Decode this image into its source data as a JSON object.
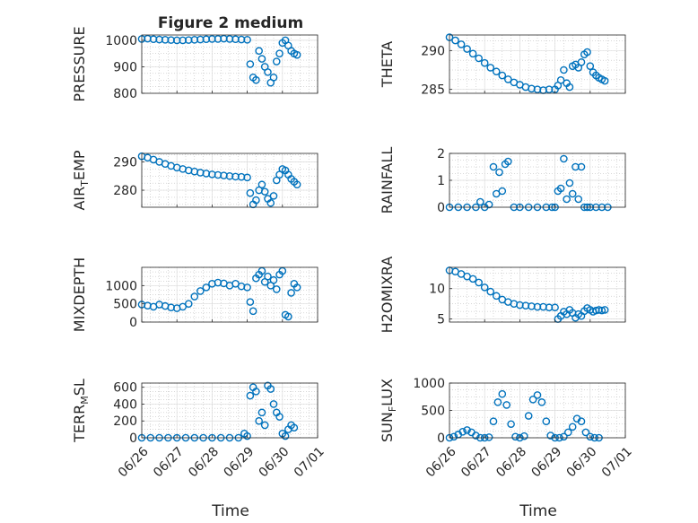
{
  "figure": {
    "title": "Figure 2 medium",
    "xlabel": "Time"
  },
  "style": {
    "marker_color": "#0072bd",
    "axis_color": "#262626",
    "grid_color": "#b3b3b3",
    "background": "#ffffff"
  },
  "x_tick_labels": [
    "06/26",
    "06/27",
    "06/28",
    "06/29",
    "06/30",
    "07/01"
  ],
  "chart_data": [
    {
      "type": "scatter",
      "ylabel": "PRESSURE",
      "ylim": [
        800,
        1020
      ],
      "yticks": [
        800,
        900,
        1000
      ],
      "xlim": [
        "06/26",
        "07/01"
      ],
      "grid": true,
      "series": [
        {
          "x": [
            "06/26 00:00",
            "06/26 04:00",
            "06/26 08:00",
            "06/26 12:00",
            "06/26 16:00",
            "06/26 20:00",
            "06/27 00:00",
            "06/27 04:00",
            "06/27 08:00",
            "06/27 12:00",
            "06/27 16:00",
            "06/27 20:00",
            "06/28 00:00",
            "06/28 04:00",
            "06/28 08:00",
            "06/28 12:00",
            "06/28 16:00",
            "06/28 20:00",
            "06/29 00:00",
            "06/29 02:00",
            "06/29 04:00",
            "06/29 06:00",
            "06/29 08:00",
            "06/29 10:00",
            "06/29 12:00",
            "06/29 14:00",
            "06/29 16:00",
            "06/29 18:00",
            "06/29 20:00",
            "06/29 22:00",
            "06/30 00:00",
            "06/30 02:00",
            "06/30 04:00",
            "06/30 06:00",
            "06/30 08:00",
            "06/30 10:00"
          ],
          "y": [
            1005,
            1006,
            1004,
            1003,
            1002,
            1001,
            1000,
            1000,
            1001,
            1002,
            1003,
            1004,
            1005,
            1005,
            1006,
            1005,
            1004,
            1003,
            1002,
            910,
            860,
            850,
            960,
            930,
            900,
            880,
            840,
            860,
            920,
            950,
            990,
            1000,
            980,
            960,
            950,
            945
          ]
        }
      ]
    },
    {
      "type": "scatter",
      "ylabel": "THETA",
      "ylim": [
        284.5,
        292
      ],
      "yticks": [
        285,
        290
      ],
      "xlim": [
        "06/26",
        "07/01"
      ],
      "grid": true,
      "series": [
        {
          "x": [
            "06/26 00:00",
            "06/26 04:00",
            "06/26 08:00",
            "06/26 12:00",
            "06/26 16:00",
            "06/26 20:00",
            "06/27 00:00",
            "06/27 04:00",
            "06/27 08:00",
            "06/27 12:00",
            "06/27 16:00",
            "06/27 20:00",
            "06/28 00:00",
            "06/28 04:00",
            "06/28 08:00",
            "06/28 12:00",
            "06/28 16:00",
            "06/28 20:00",
            "06/29 00:00",
            "06/29 02:00",
            "06/29 04:00",
            "06/29 06:00",
            "06/29 08:00",
            "06/29 10:00",
            "06/29 12:00",
            "06/29 14:00",
            "06/29 16:00",
            "06/29 18:00",
            "06/29 20:00",
            "06/29 22:00",
            "06/30 00:00",
            "06/30 02:00",
            "06/30 04:00",
            "06/30 06:00",
            "06/30 08:00",
            "06/30 10:00"
          ],
          "y": [
            291.7,
            291.3,
            290.8,
            290.2,
            289.6,
            289.0,
            288.4,
            287.8,
            287.3,
            286.8,
            286.3,
            285.9,
            285.6,
            285.3,
            285.1,
            285.0,
            284.9,
            285.0,
            285.0,
            285.5,
            286.2,
            287.5,
            285.8,
            285.3,
            288.0,
            288.2,
            287.8,
            288.5,
            289.5,
            289.8,
            288.0,
            287.2,
            286.8,
            286.5,
            286.3,
            286.1
          ]
        }
      ]
    },
    {
      "type": "scatter",
      "ylabel": "AIR_TEMP",
      "ylim": [
        274,
        293
      ],
      "yticks": [
        280,
        290
      ],
      "xlim": [
        "06/26",
        "07/01"
      ],
      "grid": true,
      "series": [
        {
          "x": [
            "06/26 00:00",
            "06/26 04:00",
            "06/26 08:00",
            "06/26 12:00",
            "06/26 16:00",
            "06/26 20:00",
            "06/27 00:00",
            "06/27 04:00",
            "06/27 08:00",
            "06/27 12:00",
            "06/27 16:00",
            "06/27 20:00",
            "06/28 00:00",
            "06/28 04:00",
            "06/28 08:00",
            "06/28 12:00",
            "06/28 16:00",
            "06/28 20:00",
            "06/29 00:00",
            "06/29 02:00",
            "06/29 04:00",
            "06/29 06:00",
            "06/29 08:00",
            "06/29 10:00",
            "06/29 12:00",
            "06/29 14:00",
            "06/29 16:00",
            "06/29 18:00",
            "06/29 20:00",
            "06/29 22:00",
            "06/30 00:00",
            "06/30 02:00",
            "06/30 04:00",
            "06/30 06:00",
            "06/30 08:00",
            "06/30 10:00"
          ],
          "y": [
            292.0,
            291.5,
            290.8,
            290.0,
            289.3,
            288.6,
            288.0,
            287.5,
            287.0,
            286.6,
            286.2,
            285.9,
            285.6,
            285.4,
            285.2,
            285.0,
            284.8,
            284.7,
            284.5,
            279.0,
            275.0,
            276.5,
            280.0,
            282.0,
            279.5,
            277.0,
            275.5,
            278.0,
            283.5,
            285.5,
            287.5,
            287.0,
            285.5,
            284.0,
            283.0,
            282.0
          ]
        }
      ]
    },
    {
      "type": "scatter",
      "ylabel": "RAINFALL",
      "ylim": [
        0,
        2
      ],
      "yticks": [
        0,
        1,
        2
      ],
      "xlim": [
        "06/26",
        "07/01"
      ],
      "grid": true,
      "series": [
        {
          "x": [
            "06/26 00:00",
            "06/26 06:00",
            "06/26 12:00",
            "06/26 18:00",
            "06/26 21:00",
            "06/27 00:00",
            "06/27 03:00",
            "06/27 06:00",
            "06/27 08:00",
            "06/27 10:00",
            "06/27 12:00",
            "06/27 14:00",
            "06/27 16:00",
            "06/27 20:00",
            "06/28 00:00",
            "06/28 06:00",
            "06/28 12:00",
            "06/28 18:00",
            "06/28 22:00",
            "06/29 00:00",
            "06/29 02:00",
            "06/29 04:00",
            "06/29 06:00",
            "06/29 08:00",
            "06/29 10:00",
            "06/29 12:00",
            "06/29 14:00",
            "06/29 16:00",
            "06/29 18:00",
            "06/29 20:00",
            "06/29 22:00",
            "06/30 00:00",
            "06/30 04:00",
            "06/30 08:00",
            "06/30 12:00"
          ],
          "y": [
            0,
            0,
            0,
            0,
            0.2,
            0,
            0.1,
            1.5,
            0.5,
            1.3,
            0.6,
            1.6,
            1.7,
            0,
            0,
            0,
            0,
            0,
            0,
            0,
            0.6,
            0.7,
            1.8,
            0.3,
            0.9,
            0.5,
            1.5,
            0.3,
            1.5,
            0,
            0,
            0,
            0,
            0,
            0
          ]
        }
      ]
    },
    {
      "type": "scatter",
      "ylabel": "MIXDEPTH",
      "ylim": [
        0,
        1500
      ],
      "yticks": [
        0,
        500,
        1000
      ],
      "xlim": [
        "06/26",
        "07/01"
      ],
      "grid": true,
      "series": [
        {
          "x": [
            "06/26 00:00",
            "06/26 04:00",
            "06/26 08:00",
            "06/26 12:00",
            "06/26 16:00",
            "06/26 20:00",
            "06/27 00:00",
            "06/27 04:00",
            "06/27 08:00",
            "06/27 12:00",
            "06/27 16:00",
            "06/27 20:00",
            "06/28 00:00",
            "06/28 04:00",
            "06/28 08:00",
            "06/28 12:00",
            "06/28 16:00",
            "06/28 20:00",
            "06/29 00:00",
            "06/29 02:00",
            "06/29 04:00",
            "06/29 06:00",
            "06/29 08:00",
            "06/29 10:00",
            "06/29 12:00",
            "06/29 14:00",
            "06/29 16:00",
            "06/29 18:00",
            "06/29 20:00",
            "06/29 22:00",
            "06/30 00:00",
            "06/30 02:00",
            "06/30 04:00",
            "06/30 06:00",
            "06/30 08:00",
            "06/30 10:00"
          ],
          "y": [
            480,
            450,
            420,
            480,
            440,
            400,
            380,
            420,
            500,
            700,
            850,
            950,
            1050,
            1080,
            1060,
            1000,
            1050,
            980,
            950,
            550,
            300,
            1200,
            1300,
            1400,
            1100,
            1250,
            1000,
            1150,
            900,
            1300,
            1400,
            200,
            150,
            800,
            1050,
            950
          ]
        }
      ]
    },
    {
      "type": "scatter",
      "ylabel": "H2OMIXRA",
      "ylim": [
        4.5,
        13.5
      ],
      "yticks": [
        5,
        10
      ],
      "xlim": [
        "06/26",
        "07/01"
      ],
      "grid": true,
      "series": [
        {
          "x": [
            "06/26 00:00",
            "06/26 04:00",
            "06/26 08:00",
            "06/26 12:00",
            "06/26 16:00",
            "06/26 20:00",
            "06/27 00:00",
            "06/27 04:00",
            "06/27 08:00",
            "06/27 12:00",
            "06/27 16:00",
            "06/27 20:00",
            "06/28 00:00",
            "06/28 04:00",
            "06/28 08:00",
            "06/28 12:00",
            "06/28 16:00",
            "06/28 20:00",
            "06/29 00:00",
            "06/29 02:00",
            "06/29 04:00",
            "06/29 06:00",
            "06/29 08:00",
            "06/29 10:00",
            "06/29 12:00",
            "06/29 14:00",
            "06/29 16:00",
            "06/29 18:00",
            "06/29 20:00",
            "06/29 22:00",
            "06/30 00:00",
            "06/30 02:00",
            "06/30 04:00",
            "06/30 06:00",
            "06/30 08:00",
            "06/30 10:00"
          ],
          "y": [
            13.0,
            12.8,
            12.4,
            12.0,
            11.6,
            11.0,
            10.2,
            9.5,
            8.8,
            8.2,
            7.8,
            7.5,
            7.3,
            7.2,
            7.1,
            7.0,
            7.0,
            6.9,
            6.9,
            5.0,
            5.5,
            6.2,
            5.8,
            6.5,
            6.0,
            5.2,
            5.8,
            5.5,
            6.3,
            6.8,
            6.5,
            6.2,
            6.4,
            6.5,
            6.4,
            6.5
          ]
        }
      ]
    },
    {
      "type": "scatter",
      "ylabel": "TERR_MSL",
      "ylim": [
        0,
        650
      ],
      "yticks": [
        0,
        200,
        400,
        600
      ],
      "xlim": [
        "06/26",
        "07/01"
      ],
      "grid": true,
      "series": [
        {
          "x": [
            "06/26 00:00",
            "06/26 06:00",
            "06/26 12:00",
            "06/26 18:00",
            "06/27 00:00",
            "06/27 06:00",
            "06/27 12:00",
            "06/27 18:00",
            "06/28 00:00",
            "06/28 06:00",
            "06/28 12:00",
            "06/28 18:00",
            "06/28 22:00",
            "06/29 00:00",
            "06/29 02:00",
            "06/29 04:00",
            "06/29 06:00",
            "06/29 08:00",
            "06/29 10:00",
            "06/29 12:00",
            "06/29 14:00",
            "06/29 16:00",
            "06/29 18:00",
            "06/29 20:00",
            "06/29 22:00",
            "06/30 00:00",
            "06/30 02:00",
            "06/30 04:00",
            "06/30 06:00",
            "06/30 08:00"
          ],
          "y": [
            0,
            0,
            0,
            0,
            0,
            0,
            0,
            0,
            0,
            0,
            0,
            0,
            50,
            20,
            500,
            600,
            550,
            200,
            300,
            150,
            620,
            580,
            400,
            300,
            250,
            50,
            20,
            100,
            150,
            120
          ]
        }
      ]
    },
    {
      "type": "scatter",
      "ylabel": "SUN_FLUX",
      "ylim": [
        0,
        1000
      ],
      "yticks": [
        0,
        500,
        1000
      ],
      "xlim": [
        "06/26",
        "07/01"
      ],
      "grid": true,
      "series": [
        {
          "x": [
            "06/26 00:00",
            "06/26 03:00",
            "06/26 06:00",
            "06/26 09:00",
            "06/26 12:00",
            "06/26 15:00",
            "06/26 18:00",
            "06/26 21:00",
            "06/27 00:00",
            "06/27 03:00",
            "06/27 06:00",
            "06/27 09:00",
            "06/27 12:00",
            "06/27 15:00",
            "06/27 18:00",
            "06/27 21:00",
            "06/28 00:00",
            "06/28 03:00",
            "06/28 06:00",
            "06/28 09:00",
            "06/28 12:00",
            "06/28 15:00",
            "06/28 18:00",
            "06/28 21:00",
            "06/29 00:00",
            "06/29 03:00",
            "06/29 06:00",
            "06/29 09:00",
            "06/29 12:00",
            "06/29 15:00",
            "06/29 18:00",
            "06/29 21:00",
            "06/30 00:00",
            "06/30 03:00",
            "06/30 06:00"
          ],
          "y": [
            0,
            20,
            60,
            110,
            140,
            100,
            40,
            0,
            0,
            10,
            300,
            650,
            800,
            600,
            250,
            20,
            0,
            30,
            400,
            700,
            780,
            650,
            300,
            40,
            0,
            0,
            20,
            100,
            200,
            350,
            300,
            100,
            20,
            0,
            0
          ]
        }
      ]
    }
  ]
}
